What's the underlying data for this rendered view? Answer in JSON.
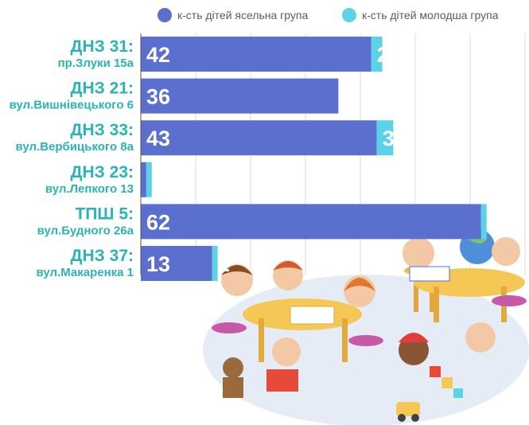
{
  "chart_data": {
    "type": "bar",
    "orientation": "horizontal",
    "stacked": true,
    "categories": [
      {
        "name": "ДНЗ 31:",
        "address": "пр.Злуки 15а"
      },
      {
        "name": "ДНЗ 21:",
        "address": "вул.Вишнівецького 6"
      },
      {
        "name": "ДНЗ 33:",
        "address": "вул.Вербицького 8а"
      },
      {
        "name": "ДНЗ 23:",
        "address": "вул.Лепкого 13"
      },
      {
        "name": "ТПШ 5:",
        "address": "вул.Будного 26а"
      },
      {
        "name": "ДНЗ 37:",
        "address": "вул.Макаренка 1"
      }
    ],
    "series": [
      {
        "name": "к-сть дітей ясельна група",
        "color": "#5b6fcf",
        "values": [
          42,
          36,
          43,
          1,
          62,
          13
        ]
      },
      {
        "name": "к-сть дітей молодша група",
        "color": "#5bd3e6",
        "values": [
          2,
          null,
          3,
          1,
          1,
          1
        ]
      }
    ],
    "xlim": [
      0,
      72
    ],
    "grid": true,
    "legend_position": "top-right"
  }
}
